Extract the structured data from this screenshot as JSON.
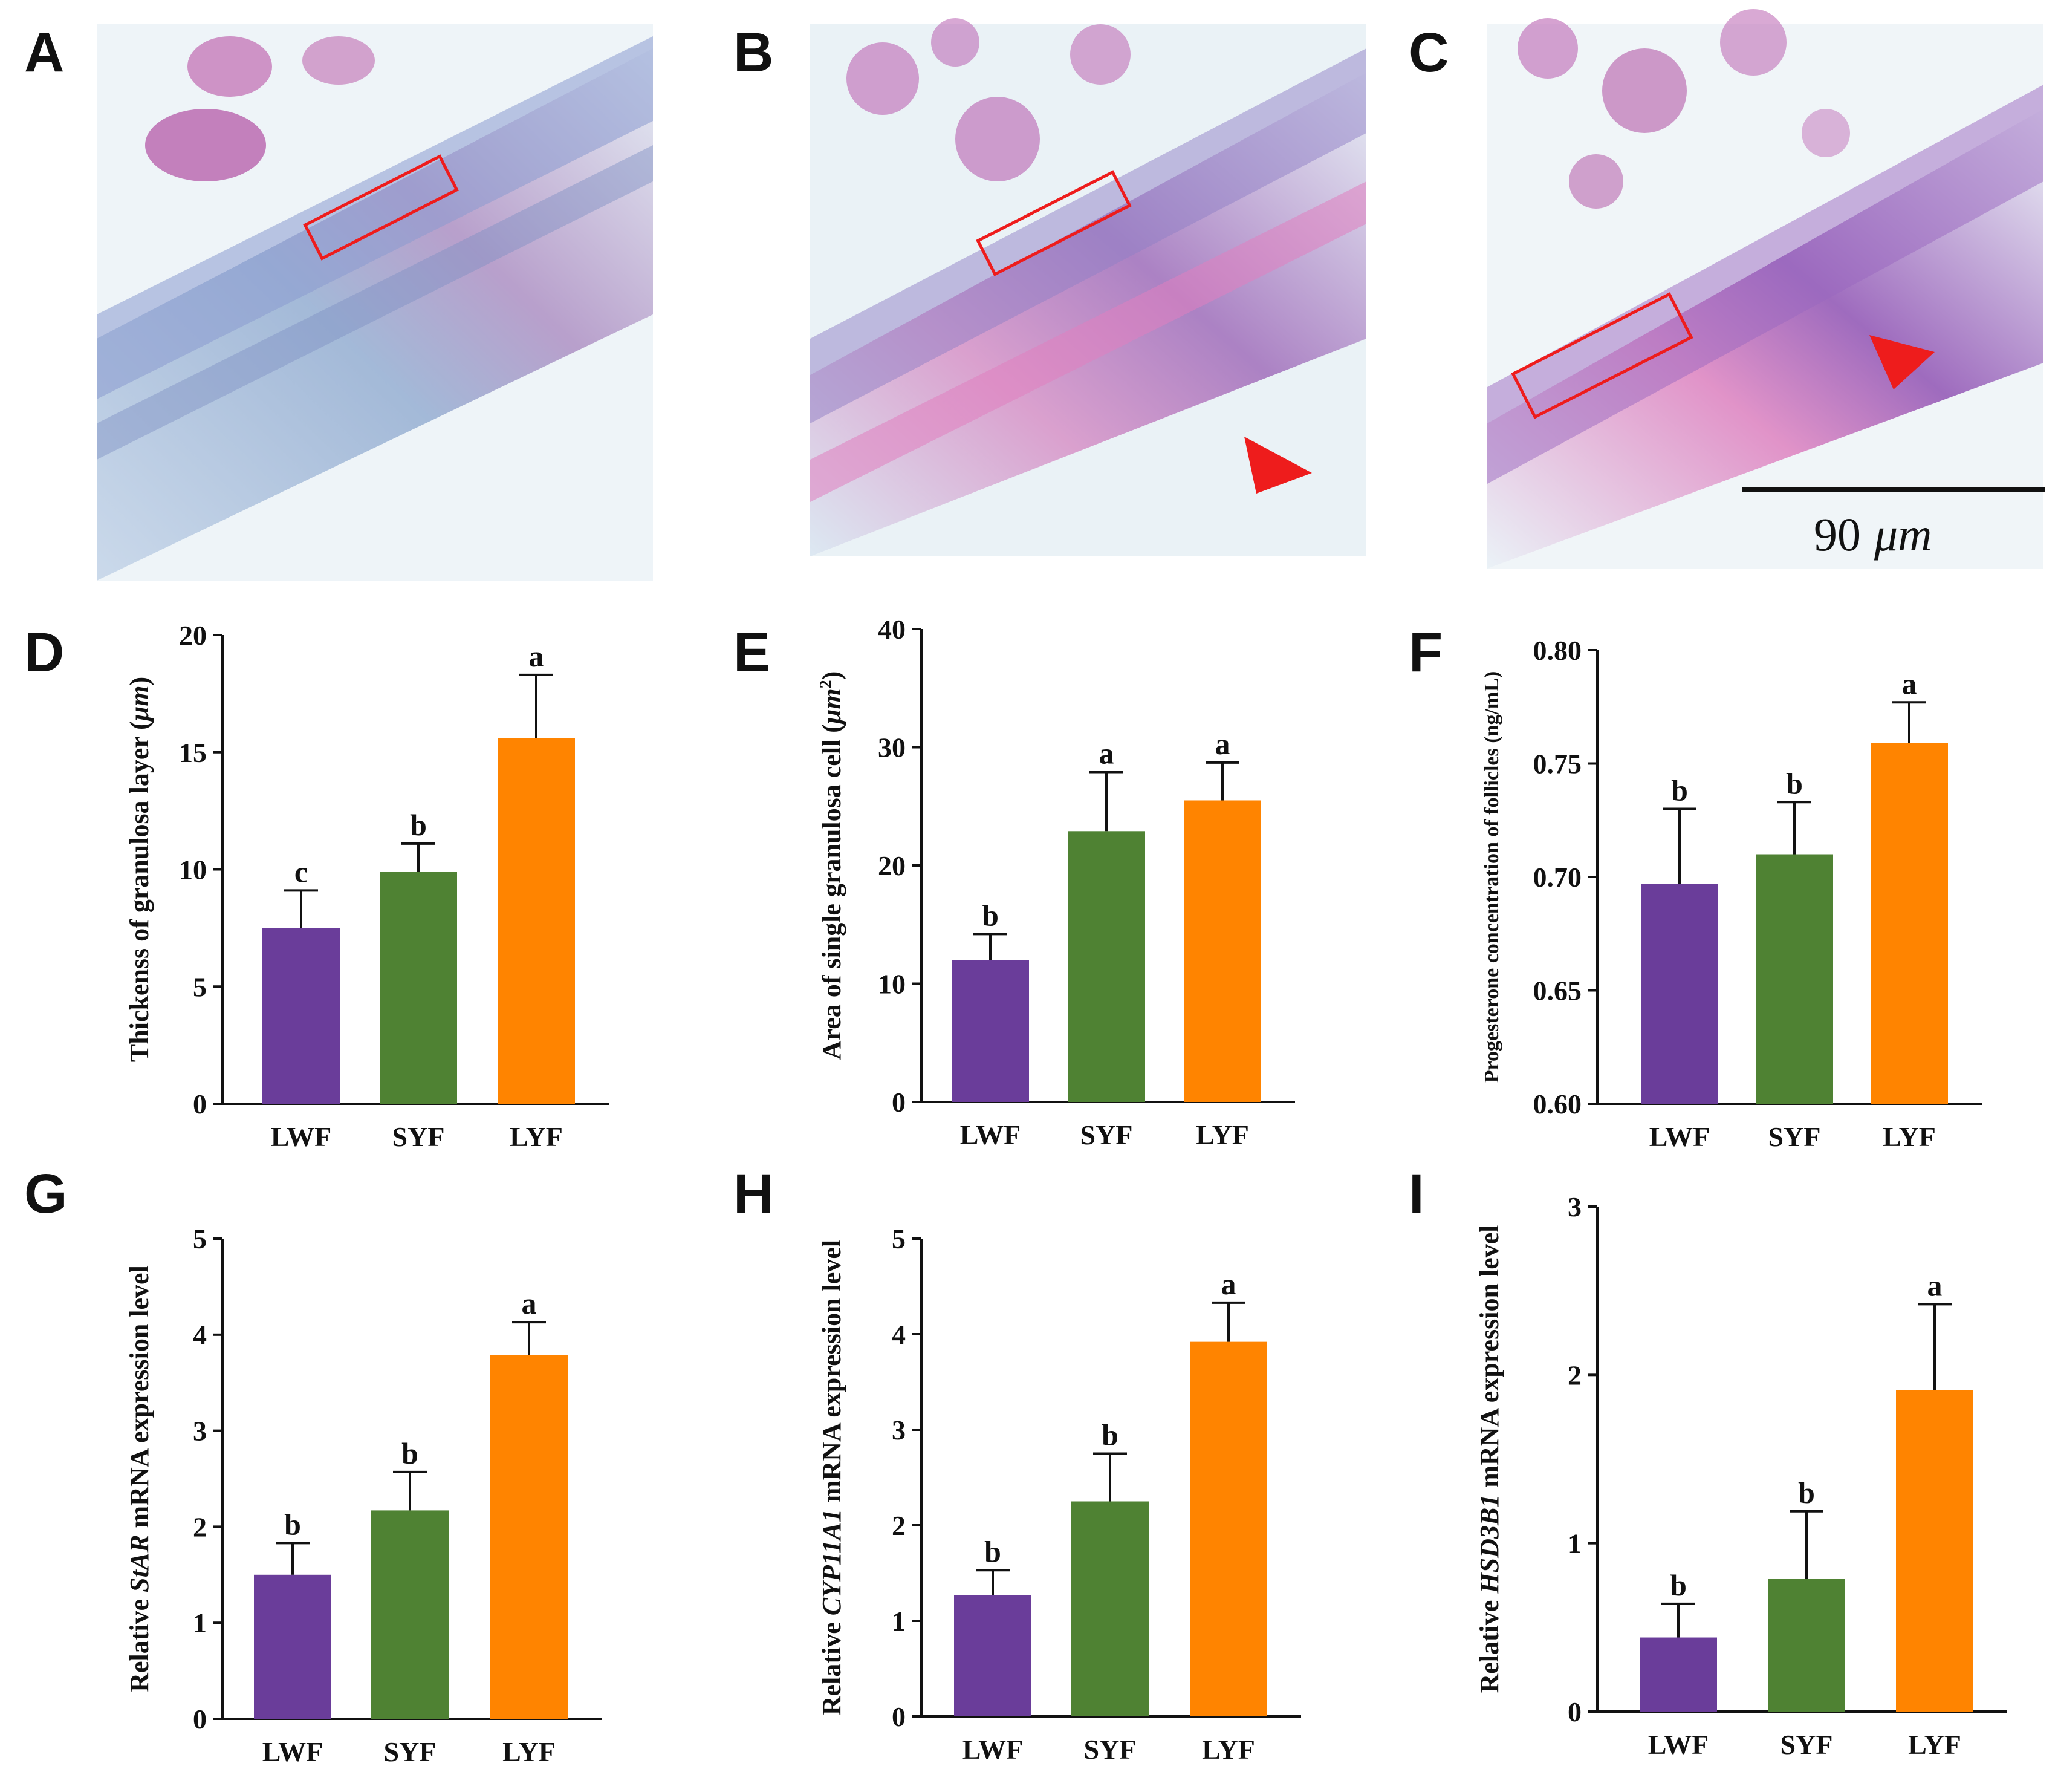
{
  "colors": {
    "LWF": "#6a3d9a",
    "SYF": "#4f8233",
    "LYF": "#ff8400",
    "annotation": "#ee1c1c",
    "tissue_bg": "#e3eef4",
    "tissue_stroma": "#7d9bc1",
    "tissue_pink": "#d98ac0",
    "tissue_purple": "#8c5aa6"
  },
  "histology": {
    "panels": [
      {
        "letter": "A",
        "image": "H&E stained follicle wall section, LWF",
        "box": true,
        "arrow": false
      },
      {
        "letter": "B",
        "image": "H&E stained follicle wall section, SYF",
        "box": true,
        "arrow": true
      },
      {
        "letter": "C",
        "image": "H&E stained follicle wall section, LYF",
        "box": true,
        "arrow": true
      }
    ],
    "scale_bar": {
      "number": "90",
      "unit": "μm"
    }
  },
  "chart_data": [
    {
      "letter": "D",
      "type": "bar",
      "categories": [
        "LWF",
        "SYF",
        "LYF"
      ],
      "values": [
        7.5,
        9.9,
        15.6
      ],
      "errors": [
        1.6,
        1.2,
        2.7
      ],
      "significance": [
        "c",
        "b",
        "a"
      ],
      "ylabel_parts": [
        {
          "text": "Thickenss of granulosa layer ("
        },
        {
          "text": "μm",
          "italic": true
        },
        {
          "text": ")"
        }
      ],
      "ylim": [
        0,
        20
      ],
      "yticks": [
        "0",
        "5",
        "10",
        "15",
        "20"
      ]
    },
    {
      "letter": "E",
      "type": "bar",
      "categories": [
        "LWF",
        "SYF",
        "LYF"
      ],
      "values": [
        12.0,
        22.9,
        25.5
      ],
      "errors": [
        2.2,
        5.0,
        3.2
      ],
      "significance": [
        "b",
        "a",
        "a"
      ],
      "ylabel_parts": [
        {
          "text": "Area of single granulosa cell ("
        },
        {
          "text": "μm",
          "italic": true
        },
        {
          "text": "2",
          "sup": true
        },
        {
          "text": ")"
        }
      ],
      "ylim": [
        0,
        40
      ],
      "yticks": [
        "0",
        "10",
        "20",
        "30",
        "40"
      ]
    },
    {
      "letter": "F",
      "type": "bar",
      "categories": [
        "LWF",
        "SYF",
        "LYF"
      ],
      "values": [
        0.697,
        0.71,
        0.759
      ],
      "errors": [
        0.033,
        0.023,
        0.018
      ],
      "significance": [
        "b",
        "b",
        "a"
      ],
      "ylabel_parts": [
        {
          "text": "Progesterone concentration of follicles (ng/mL)"
        }
      ],
      "ylim": [
        0.6,
        0.8
      ],
      "yticks": [
        "0.60",
        "0.65",
        "0.70",
        "0.75",
        "0.80"
      ]
    },
    {
      "letter": "G",
      "type": "bar",
      "categories": [
        "LWF",
        "SYF",
        "LYF"
      ],
      "values": [
        1.5,
        2.17,
        3.79
      ],
      "errors": [
        0.33,
        0.4,
        0.34
      ],
      "significance": [
        "b",
        "b",
        "a"
      ],
      "ylabel_parts": [
        {
          "text": "Relative "
        },
        {
          "text": "StAR",
          "italic": true
        },
        {
          "text": " mRNA expression level"
        }
      ],
      "ylim": [
        0,
        5
      ],
      "yticks": [
        "0",
        "1",
        "2",
        "3",
        "4",
        "5"
      ]
    },
    {
      "letter": "H",
      "type": "bar",
      "categories": [
        "LWF",
        "SYF",
        "LYF"
      ],
      "values": [
        1.27,
        2.25,
        3.92
      ],
      "errors": [
        0.26,
        0.5,
        0.41
      ],
      "significance": [
        "b",
        "b",
        "a"
      ],
      "ylabel_parts": [
        {
          "text": "Relative "
        },
        {
          "text": "CYP11A1",
          "italic": true
        },
        {
          "text": " mRNA expression level"
        }
      ],
      "ylim": [
        0,
        5
      ],
      "yticks": [
        "0",
        "1",
        "2",
        "3",
        "4",
        "5"
      ]
    },
    {
      "letter": "I",
      "type": "bar",
      "categories": [
        "LWF",
        "SYF",
        "LYF"
      ],
      "values": [
        0.44,
        0.79,
        1.91
      ],
      "errors": [
        0.2,
        0.4,
        0.51
      ],
      "significance": [
        "b",
        "b",
        "a"
      ],
      "ylabel_parts": [
        {
          "text": "Relative "
        },
        {
          "text": "HSD3B1",
          "italic": true
        },
        {
          "text": " mRNA expression level"
        }
      ],
      "ylim": [
        0,
        3
      ],
      "yticks": [
        "0",
        "1",
        "2",
        "3"
      ]
    }
  ]
}
